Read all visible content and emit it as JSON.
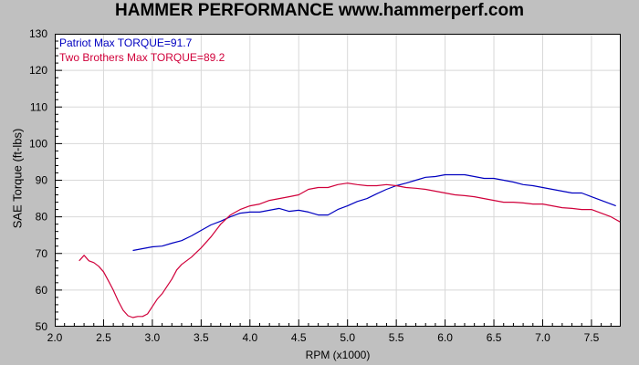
{
  "title": "HAMMER PERFORMANCE www.hammerperf.com",
  "chart_data": {
    "type": "line",
    "title": "HAMMER PERFORMANCE www.hammerperf.com",
    "xlabel": "RPM (x1000)",
    "ylabel": "SAE Torque (ft-lbs)",
    "xlim": [
      2.0,
      7.8
    ],
    "ylim": [
      50,
      130
    ],
    "x_ticks": [
      "2.0",
      "2.5",
      "3.0",
      "3.5",
      "4.0",
      "4.5",
      "5.0",
      "5.5",
      "6.0",
      "6.5",
      "7.0",
      "7.5"
    ],
    "y_ticks": [
      "130",
      "120",
      "110",
      "100",
      "90",
      "80",
      "70",
      "60",
      "50"
    ],
    "grid": true,
    "legend_position": "top-left",
    "series": [
      {
        "name": "Patriot",
        "label": "Patriot  Max TORQUE=91.7",
        "color": "#0000c0",
        "x": [
          2.8,
          2.9,
          3.0,
          3.1,
          3.2,
          3.3,
          3.4,
          3.5,
          3.6,
          3.7,
          3.8,
          3.9,
          4.0,
          4.1,
          4.2,
          4.3,
          4.4,
          4.5,
          4.6,
          4.7,
          4.8,
          4.9,
          5.0,
          5.1,
          5.2,
          5.3,
          5.4,
          5.5,
          5.6,
          5.7,
          5.8,
          5.9,
          6.0,
          6.1,
          6.2,
          6.3,
          6.4,
          6.5,
          6.6,
          6.7,
          6.8,
          6.9,
          7.0,
          7.1,
          7.2,
          7.3,
          7.4,
          7.5,
          7.6,
          7.7,
          7.75
        ],
        "y": [
          70.8,
          71.3,
          71.8,
          72.0,
          72.8,
          73.5,
          74.8,
          76.3,
          77.8,
          78.8,
          80.0,
          81.0,
          81.3,
          81.3,
          81.8,
          82.3,
          81.5,
          81.8,
          81.3,
          80.5,
          80.5,
          82.0,
          83.0,
          84.2,
          85.0,
          86.3,
          87.5,
          88.5,
          89.2,
          90.0,
          90.8,
          91.0,
          91.5,
          91.5,
          91.5,
          91.0,
          90.5,
          90.5,
          90.0,
          89.5,
          88.8,
          88.5,
          88.0,
          87.5,
          87.0,
          86.5,
          86.5,
          85.5,
          84.5,
          83.5,
          83.0
        ]
      },
      {
        "name": "Two Brothers",
        "label": "Two Brothers  Max TORQUE=89.2",
        "color": "#d0003a",
        "x": [
          2.25,
          2.3,
          2.35,
          2.4,
          2.45,
          2.5,
          2.55,
          2.6,
          2.65,
          2.7,
          2.75,
          2.8,
          2.85,
          2.9,
          2.95,
          3.0,
          3.05,
          3.1,
          3.15,
          3.2,
          3.25,
          3.3,
          3.4,
          3.5,
          3.6,
          3.7,
          3.8,
          3.9,
          4.0,
          4.1,
          4.2,
          4.3,
          4.4,
          4.5,
          4.6,
          4.7,
          4.8,
          4.9,
          5.0,
          5.1,
          5.2,
          5.3,
          5.4,
          5.5,
          5.6,
          5.7,
          5.8,
          5.9,
          6.0,
          6.1,
          6.2,
          6.3,
          6.4,
          6.5,
          6.6,
          6.7,
          6.8,
          6.9,
          7.0,
          7.1,
          7.2,
          7.3,
          7.4,
          7.5,
          7.6,
          7.7,
          7.8
        ],
        "y": [
          68.0,
          69.5,
          68.0,
          67.5,
          66.5,
          65.0,
          62.5,
          60.0,
          57.0,
          54.5,
          53.0,
          52.5,
          52.8,
          52.8,
          53.5,
          55.5,
          57.5,
          59.0,
          61.0,
          63.0,
          65.5,
          67.0,
          69.0,
          71.5,
          74.5,
          78.0,
          80.5,
          82.0,
          83.0,
          83.5,
          84.5,
          85.0,
          85.5,
          86.0,
          87.5,
          88.0,
          88.0,
          88.8,
          89.2,
          88.8,
          88.5,
          88.5,
          88.8,
          88.5,
          88.0,
          87.8,
          87.5,
          87.0,
          86.5,
          86.0,
          85.8,
          85.5,
          85.0,
          84.5,
          84.0,
          84.0,
          83.8,
          83.5,
          83.5,
          83.0,
          82.5,
          82.3,
          82.0,
          82.0,
          81.0,
          80.0,
          78.5
        ]
      }
    ]
  }
}
